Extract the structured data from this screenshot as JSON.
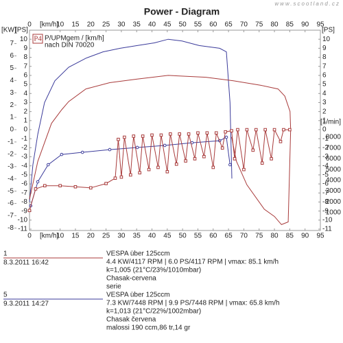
{
  "chart_data": {
    "type": "line",
    "title": "Power - Diagram",
    "watermark": "www.scootland.cz",
    "x_label": "[km/h]",
    "y_label": "[KW]",
    "y2_label": "[PS]",
    "y3_label": "[1/min]",
    "xlim": [
      0,
      95
    ],
    "xticks": [
      0,
      10,
      15,
      20,
      25,
      30,
      35,
      40,
      45,
      50,
      55,
      60,
      65,
      70,
      75,
      80,
      85,
      90,
      95
    ],
    "ylim": [
      -8.2,
      8.09
    ],
    "yticks": [
      -8,
      -7,
      -6,
      -5,
      -4,
      -3,
      -2,
      -1,
      0,
      1,
      2,
      3,
      4,
      5,
      6,
      7
    ],
    "y2lim": [
      -11.15,
      11
    ],
    "y2ticks": [
      -11,
      -10,
      -9,
      -8,
      -7,
      -6,
      -5,
      -4,
      -3,
      -2,
      -1,
      0,
      1,
      2,
      3,
      4,
      5,
      6,
      7,
      8,
      9,
      10
    ],
    "y3lim": [
      -660,
      17940
    ],
    "y3ticks": [
      1000,
      2000,
      3000,
      4000,
      5000,
      6000,
      7000,
      8000
    ],
    "legend": {
      "badge": "P4",
      "lines": [
        "P/UPMgem / [km/h]",
        "nach DIN 70020"
      ]
    },
    "series": [
      {
        "color": "#3a3a9a",
        "axis": "y2",
        "x": [
          0,
          1.1,
          2.7,
          4.9,
          8.3,
          12.8,
          18.4,
          24,
          29.6,
          35.2,
          40.8,
          45.3,
          49.8,
          55.4,
          62.1,
          64.3,
          65.5,
          66.1
        ],
        "values": [
          -8,
          -3.9,
          -0.5,
          3,
          5.4,
          6.9,
          7.9,
          8.6,
          9,
          9.3,
          9.6,
          10,
          9.8,
          9.3,
          9,
          8.6,
          3,
          -5.4
        ]
      },
      {
        "color": "#a83a3a",
        "axis": "y2",
        "x": [
          0,
          2.7,
          7.2,
          10.5,
          12.8,
          18.4,
          26.2,
          35.2,
          45.3,
          57.6,
          66.6,
          75.6,
          81.2,
          83.4,
          85.1,
          85.3,
          84.5,
          82.3,
          80,
          76.7,
          71,
          67.6,
          66
        ],
        "values": [
          -7.7,
          -3.5,
          0.7,
          2.2,
          3.1,
          4.5,
          5.2,
          5.6,
          6,
          5.8,
          5.4,
          4.9,
          4.5,
          3.7,
          2,
          0,
          -10.2,
          -10.5,
          -9.6,
          -8.8,
          -6.1,
          -3.5,
          -0.8
        ]
      },
      {
        "color": "#3a3a9a",
        "axis": "y3",
        "marker": "circle",
        "x": [
          0.4,
          2.7,
          6.1,
          10.5,
          17.3,
          26.2,
          35.2,
          44.2,
          53.1,
          62.1,
          64.3,
          65.5
        ],
        "values": [
          1630,
          3860,
          5450,
          6400,
          6600,
          6850,
          7050,
          7240,
          7490,
          7680,
          8000,
          5450
        ]
      },
      {
        "color": "#a83a3a",
        "axis": "y3",
        "marker": "square",
        "x": [
          0,
          2,
          5,
          10,
          15,
          20,
          25,
          28,
          29,
          30,
          31,
          33,
          34,
          36,
          37,
          39,
          40,
          42,
          43,
          45,
          46,
          48,
          49,
          51,
          52,
          54,
          55,
          57,
          58,
          60,
          61,
          63,
          64,
          66,
          67,
          68,
          70,
          71,
          73,
          74,
          76,
          77,
          79,
          80,
          82,
          83,
          85
        ],
        "values": [
          1200,
          3200,
          3500,
          3500,
          3400,
          3300,
          3700,
          4200,
          7800,
          4300,
          8000,
          4500,
          8100,
          4700,
          8100,
          5000,
          8200,
          5200,
          8200,
          4800,
          8300,
          5500,
          8300,
          5800,
          8300,
          6000,
          8400,
          6200,
          8400,
          5200,
          8400,
          7000,
          8500,
          8600,
          6000,
          8700,
          5000,
          8700,
          6800,
          8700,
          5600,
          8700,
          6000,
          8700,
          7600,
          8700,
          8700
        ]
      }
    ],
    "runs": [
      {
        "number": "1",
        "date": "8.3.2011  16:42",
        "color": "#a83a3a",
        "lines": [
          "VESPA über 125ccm",
          "4.4 KW/4117 RPM  |  6.0 PS/4117 RPM  |  vmax: 85.1 km/h",
          "k=1,005 (21°C/23%/1010mbar)",
          "Chasak-cervena",
          "serie"
        ]
      },
      {
        "number": "5",
        "date": "9.3.2011  14:27",
        "color": "#3a3a9a",
        "lines": [
          "VESPA über 125ccm",
          "7.3 KW/7448 RPM  |  9.9 PS/7448 RPM  |  vmax: 65.8 km/h",
          "k=1,013 (21°C/22%/1002mbar)",
          "Chasak červena",
          "malossi 190 ccm,86 tr,14 gr"
        ]
      }
    ]
  }
}
